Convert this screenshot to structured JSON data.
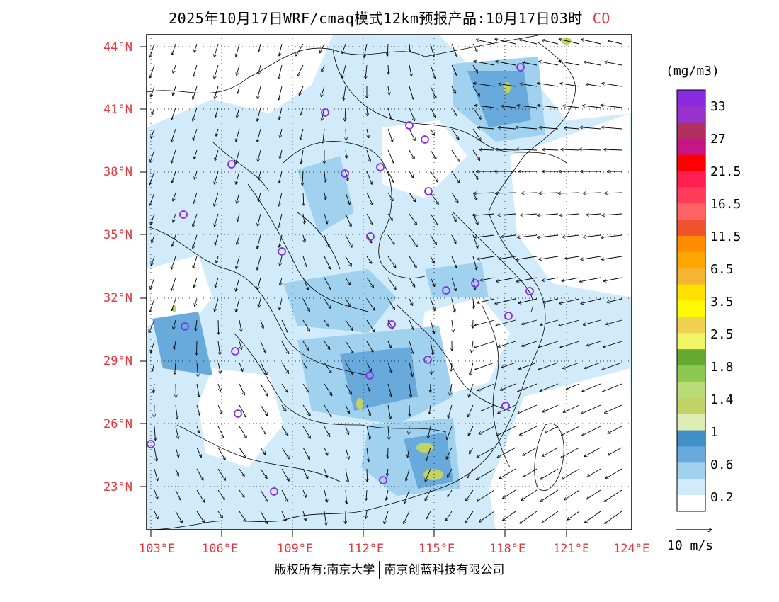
{
  "title": "2025年10月17日WRF/cmaq模式12km预报产品:10月17日03时",
  "species": "CO",
  "latitude_labels": [
    "44°N",
    "41°N",
    "38°N",
    "35°N",
    "32°N",
    "29°N",
    "26°N",
    "23°N"
  ],
  "longitude_labels": [
    "103°E",
    "106°E",
    "109°E",
    "112°E",
    "115°E",
    "118°E",
    "121°E",
    "124°E"
  ],
  "colorbar": {
    "unit": "(mg/m3)",
    "labels": [
      "33",
      "27",
      "21.5",
      "16.5",
      "11.5",
      "6.5",
      "3.5",
      "2.5",
      "1.8",
      "1.4",
      "1",
      "0.6",
      "0.2"
    ],
    "colors": [
      "#8a2be2",
      "#9932cc",
      "#b03060",
      "#c71585",
      "#ff0000",
      "#ff1e50",
      "#ff3c5a",
      "#ff6464",
      "#f0522d",
      "#ff8c00",
      "#ffa500",
      "#f5b432",
      "#ffe100",
      "#fffa00",
      "#f0d250",
      "#f0f564",
      "#64aa32",
      "#8cc850",
      "#b9dc78",
      "#c3d264",
      "#dceeb4",
      "#4191c8",
      "#69aadc",
      "#a0d2f0",
      "#d2ebfa",
      "#ffffff"
    ]
  },
  "wind_reference": "10 m/s",
  "copyright": {
    "left": "版权所有:南京大学",
    "right": "南京创蓝科技有限公司"
  }
}
